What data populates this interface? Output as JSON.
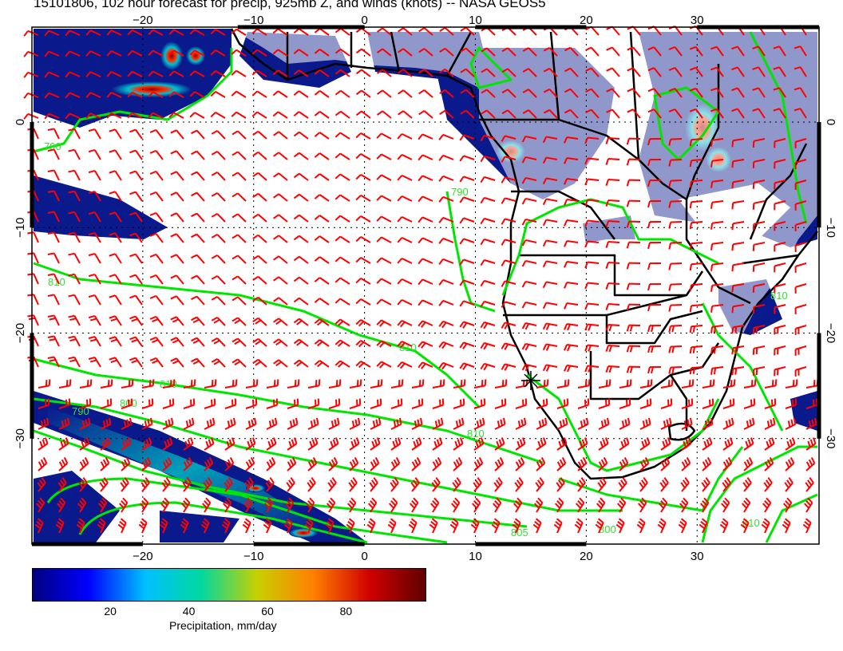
{
  "title": "15101806, 102 hour forecast for precip, 925mb Z, and winds (knots) -- NASA GEOS5",
  "map": {
    "lon_range": [
      -30,
      41
    ],
    "lat_range": [
      -40,
      9
    ],
    "lon_ticks": [
      -20,
      -10,
      0,
      10,
      20,
      30
    ],
    "lon_tick_labels": [
      "−20",
      "−10",
      "0",
      "10",
      "20",
      "30"
    ],
    "lat_ticks": [
      0,
      -10,
      -20,
      -30
    ],
    "lat_tick_labels": [
      "0",
      "−10",
      "−20",
      "−30"
    ],
    "gridlines": "dotted",
    "colors": {
      "precip_low": "#0a1a8c",
      "precip_high": "#8b0000",
      "contour": "#00e000",
      "wind_barb": "#ff0000",
      "coast": "#000000"
    },
    "contour_labels": [
      "790",
      "810",
      "810",
      "790",
      "810",
      "800",
      "790",
      "810",
      "805",
      "800",
      "810",
      "810"
    ],
    "marker": {
      "name": "station-marker",
      "lon": 15,
      "lat": -24.5
    }
  },
  "colorbar": {
    "ticks": [
      "20",
      "40",
      "60",
      "80"
    ],
    "tick_values": [
      20,
      40,
      60,
      80
    ],
    "range": [
      0,
      100
    ],
    "label": "Precipitation, mm/day",
    "colormap": [
      "#000080",
      "#0000ff",
      "#00c0ff",
      "#00d8a0",
      "#c8d000",
      "#ff8000",
      "#d00000",
      "#600000"
    ]
  }
}
